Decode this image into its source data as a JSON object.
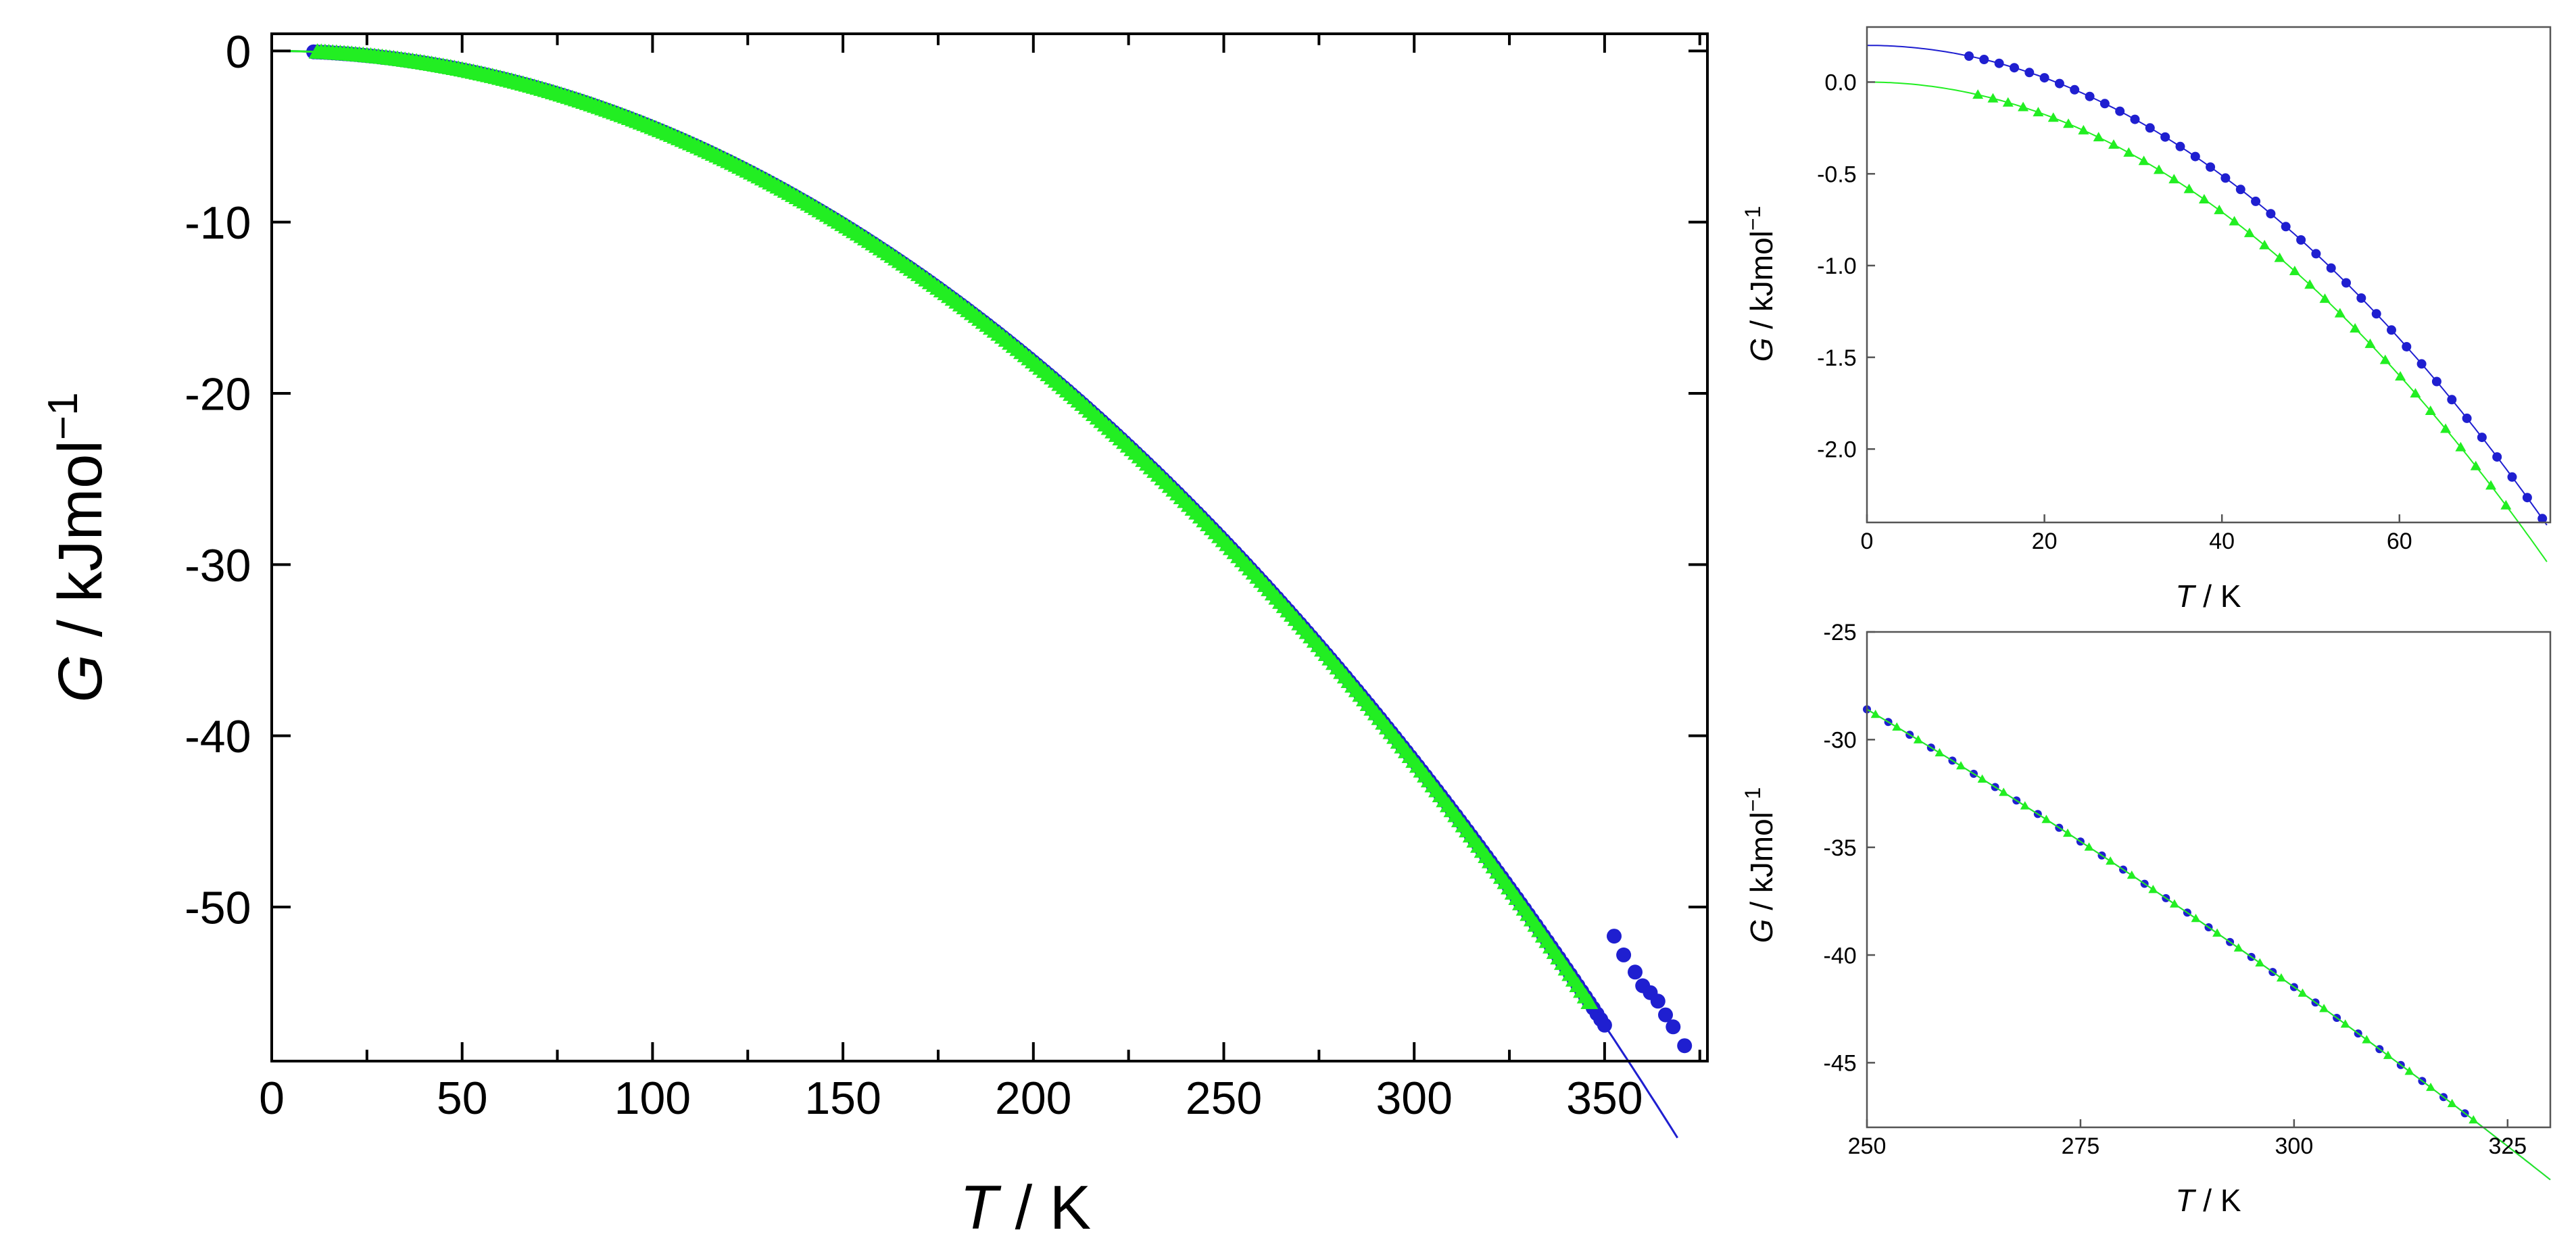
{
  "colors": {
    "series_blue": "#1f1fd0",
    "series_green": "#22ee22",
    "axis": "#000000",
    "frame_gray": "#555555"
  },
  "chart_data": [
    {
      "id": "main",
      "type": "scatter",
      "xlabel": {
        "var": "T",
        "unit": " / K"
      },
      "ylabel": {
        "var": "G",
        "unit": " / kJmol",
        "sup": "−1"
      },
      "xlim": [
        0,
        377
      ],
      "ylim": [
        -59,
        1
      ],
      "xticks": [
        0,
        50,
        100,
        150,
        200,
        250,
        300,
        350
      ],
      "xtick_labels": [
        "0",
        "50",
        "100",
        "150",
        "200",
        "250",
        "300",
        "350"
      ],
      "yticks": [
        0,
        -10,
        -20,
        -30,
        -40,
        -50
      ],
      "ytick_labels": [
        "0",
        "-10",
        "-20",
        "-30",
        "-40",
        "-50"
      ],
      "grid": false,
      "legend": "none",
      "series": [
        {
          "marker": "circle",
          "color": "#1f1fd0",
          "line": true,
          "x_start": 11,
          "x_end": 350,
          "x_step": 1,
          "points": [
            [
              352.5,
              -51.7
            ],
            [
              355,
              -52.8
            ],
            [
              358,
              -53.8
            ],
            [
              360,
              -54.6
            ],
            [
              362,
              -55.0
            ],
            [
              364,
              -55.5
            ],
            [
              366,
              -56.3
            ],
            [
              368,
              -57.0
            ],
            [
              371,
              -58.1
            ]
          ]
        },
        {
          "marker": "triangle",
          "color": "#22ee22",
          "line": true,
          "x_start": 12,
          "x_end": 346,
          "x_step": 1
        }
      ],
      "fit_curve": {
        "a": 0.00044,
        "b": 7e-08
      }
    },
    {
      "id": "inset-low",
      "type": "scatter",
      "xlabel": {
        "var": "T",
        "unit": " / K"
      },
      "ylabel": {
        "var": "G",
        "unit": " / kJmol",
        "sup": "−1"
      },
      "xlim": [
        0,
        77
      ],
      "ylim": [
        -2.4,
        0.3
      ],
      "xticks": [
        0,
        20,
        40,
        60
      ],
      "xtick_labels": [
        "0",
        "20",
        "40",
        "60"
      ],
      "yticks": [
        0.0,
        -0.5,
        -1.0,
        -1.5,
        -2.0
      ],
      "ytick_labels": [
        "0.0",
        "-0.5",
        "-1.0",
        "-1.5",
        "-2.0"
      ],
      "grid": false,
      "legend": "none",
      "series": [
        {
          "marker": "circle",
          "color": "#1f1fd0",
          "line": true,
          "offset": 0.2,
          "x_start": 11.5,
          "x_end": 77,
          "x_step": 1.7
        },
        {
          "marker": "triangle",
          "color": "#22ee22",
          "line": true,
          "offset": 0.0,
          "x_start": 12.5,
          "x_end": 77,
          "x_step": 1.7
        }
      ]
    },
    {
      "id": "inset-high",
      "type": "scatter",
      "xlabel": {
        "var": "T",
        "unit": " / K"
      },
      "ylabel": {
        "var": "G",
        "unit": " / kJmol",
        "sup": "−1"
      },
      "xlim": [
        250,
        330
      ],
      "ylim": [
        -48,
        -25
      ],
      "xticks": [
        250,
        275,
        300,
        325
      ],
      "xtick_labels": [
        "250",
        "275",
        "300",
        "325"
      ],
      "yticks": [
        -25,
        -30,
        -35,
        -40,
        -45
      ],
      "ytick_labels": [
        "-25",
        "-30",
        "-35",
        "-40",
        "-45"
      ],
      "grid": false,
      "legend": "none",
      "series": [
        {
          "marker": "circle",
          "color": "#1f1fd0",
          "line": true,
          "x_start": 250,
          "x_end": 328,
          "x_step": 2.5
        },
        {
          "marker": "triangle",
          "color": "#22ee22",
          "line": true,
          "x_start": 251,
          "x_end": 330,
          "x_step": 2.5
        }
      ]
    }
  ]
}
